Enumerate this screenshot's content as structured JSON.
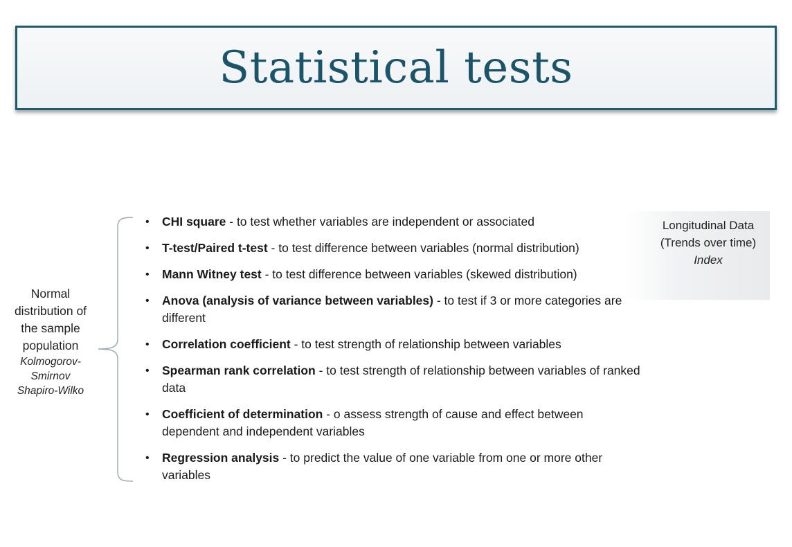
{
  "title": "Statistical tests",
  "left_note": {
    "lines": [
      "Normal",
      "distribution of",
      "the sample",
      "population"
    ],
    "methods": [
      "Kolmogorov-",
      "Smirnov",
      "Shapiro-Wilko"
    ]
  },
  "tests": [
    {
      "bullet": "•",
      "name": "CHI square",
      "desc": " - to test whether variables are independent  or associated"
    },
    {
      "bullet": "•",
      "name": "T-test/Paired t-test",
      "desc": " - to test difference between variables (normal distribution)"
    },
    {
      "bullet": "•",
      "name": "Mann Witney test",
      "desc": " - to test difference between variables (skewed distribution)"
    },
    {
      "bullet": "•",
      "name": "Anova (analysis of variance between variables)",
      "desc": " - to test if 3 or more categories are different"
    },
    {
      "bullet": "•",
      "name": "Correlation coefficient",
      "desc": " - to test strength of relationship between variables"
    },
    {
      "bullet": "•",
      "name": "Spearman rank correlation",
      "desc": " - to test strength of relationship between variables of ranked data"
    },
    {
      "bullet": "•",
      "name": "Coefficient of determination",
      "desc": " - o assess strength of cause and effect between dependent and independent variables"
    },
    {
      "bullet": "•",
      "name": "Regression analysis",
      "desc": " - to predict the value of one variable from one or more other variables"
    }
  ],
  "longitudinal": {
    "line1": "Longitudinal Data",
    "line2": "(Trends over time)",
    "line3": "Index"
  }
}
